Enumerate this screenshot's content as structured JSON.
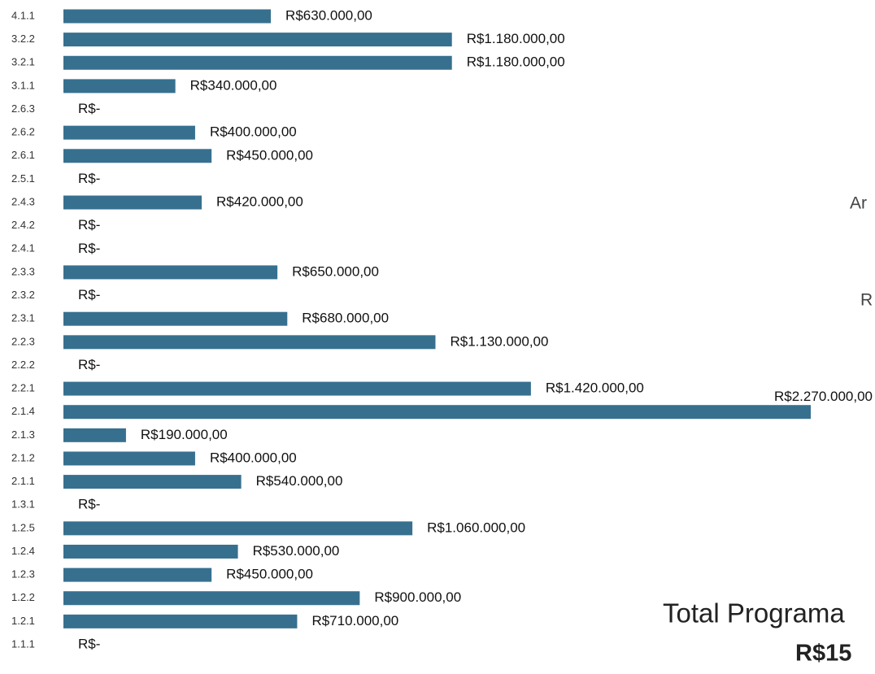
{
  "chart_data": {
    "type": "bar",
    "orientation": "horizontal",
    "color": "#37708f",
    "categories": [
      "4.1.1",
      "3.2.2",
      "3.2.1",
      "3.1.1",
      "2.6.3",
      "2.6.2",
      "2.6.1",
      "2.5.1",
      "2.4.3",
      "2.4.2",
      "2.4.1",
      "2.3.3",
      "2.3.2",
      "2.3.1",
      "2.2.3",
      "2.2.2",
      "2.2.1",
      "2.1.4",
      "2.1.3",
      "2.1.2",
      "2.1.1",
      "1.3.1",
      "1.2.5",
      "1.2.4",
      "1.2.3",
      "1.2.2",
      "1.2.1",
      "1.1.1"
    ],
    "values": [
      630000,
      1180000,
      1180000,
      340000,
      0,
      400000,
      450000,
      0,
      420000,
      0,
      0,
      650000,
      0,
      680000,
      1130000,
      0,
      1420000,
      2270000,
      190000,
      400000,
      540000,
      0,
      1060000,
      530000,
      450000,
      900000,
      710000,
      0
    ],
    "value_labels": [
      "R$630.000,00",
      "R$1.180.000,00",
      "R$1.180.000,00",
      "R$340.000,00",
      "R$-",
      "R$400.000,00",
      "R$450.000,00",
      "R$-",
      "R$420.000,00",
      "R$-",
      "R$-",
      "R$650.000,00",
      "R$-",
      "R$680.000,00",
      "R$1.130.000,00",
      "R$-",
      "R$1.420.000,00",
      "R$2.270.000,00",
      "R$190.000,00",
      "R$400.000,00",
      "R$540.000,00",
      "R$-",
      "R$1.060.000,00",
      "R$530.000,00",
      "R$450.000,00",
      "R$900.000,00",
      "R$710.000,00",
      "R$-"
    ],
    "annotations": [
      "Ar",
      "R",
      "Total Programa",
      "R$15"
    ]
  }
}
